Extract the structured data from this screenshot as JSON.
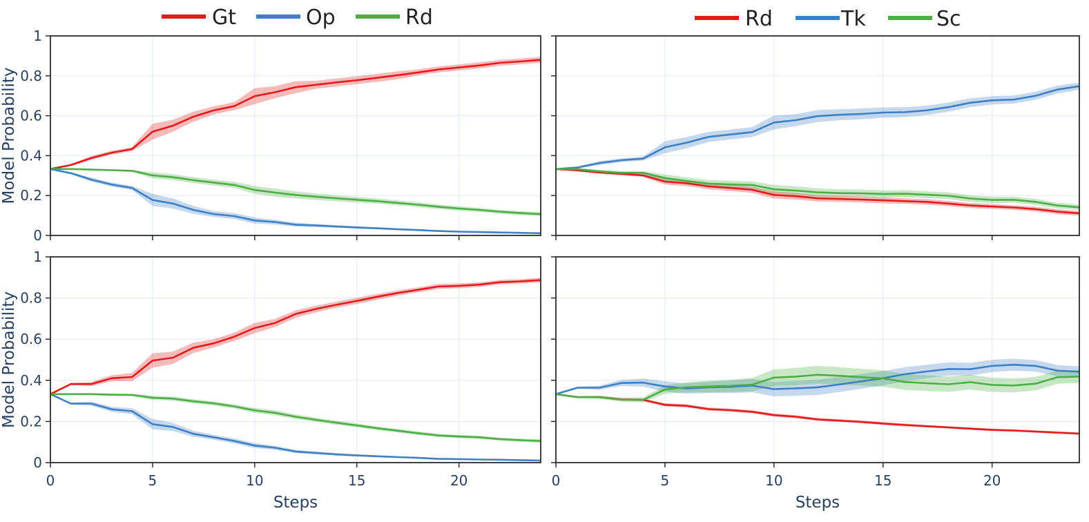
{
  "colors": {
    "red": "#e41a1c",
    "blue": "#3f7fc4",
    "green": "#4cae45",
    "text": "#2a3f5f",
    "grid": "#e6ebf3"
  },
  "legends": [
    {
      "panel_column": "left",
      "entries": [
        {
          "label": "Gt",
          "color": "#e41a1c"
        },
        {
          "label": "Op",
          "color": "#3f7fc4"
        },
        {
          "label": "Rd",
          "color": "#4cae45"
        }
      ]
    },
    {
      "panel_column": "right",
      "entries": [
        {
          "label": "Rd",
          "color": "#e41a1c"
        },
        {
          "label": "Tk",
          "color": "#3f7fc4"
        },
        {
          "label": "Sc",
          "color": "#4cae45"
        }
      ]
    }
  ],
  "chart_data": [
    {
      "type": "line",
      "panel": "top-left",
      "xlabel": "",
      "ylabel": "Model Probability",
      "xlim": [
        0,
        24
      ],
      "ylim": [
        0,
        1
      ],
      "x": [
        0,
        1,
        2,
        3,
        4,
        5,
        6,
        7,
        8,
        9,
        10,
        11,
        12,
        13,
        14,
        15,
        16,
        17,
        18,
        19,
        20,
        21,
        22,
        23,
        24
      ],
      "yticks": [
        "0",
        "0.2",
        "0.4",
        "0.6",
        "0.8",
        "1"
      ],
      "xticks": [],
      "show_y_ticklabels": true,
      "show_x_ticklabels": false,
      "series": [
        {
          "name": "Gt",
          "color": "#e41a1c",
          "values": [
            0.333,
            0.353,
            0.388,
            0.415,
            0.433,
            0.52,
            0.55,
            0.595,
            0.627,
            0.648,
            0.698,
            0.718,
            0.743,
            0.755,
            0.767,
            0.778,
            0.79,
            0.803,
            0.817,
            0.832,
            0.842,
            0.852,
            0.865,
            0.872,
            0.88
          ],
          "band": [
            0.0,
            0.005,
            0.01,
            0.01,
            0.01,
            0.04,
            0.03,
            0.025,
            0.02,
            0.02,
            0.04,
            0.03,
            0.03,
            0.02,
            0.02,
            0.02,
            0.02,
            0.02,
            0.015,
            0.015,
            0.015,
            0.015,
            0.015,
            0.015,
            0.015
          ]
        },
        {
          "name": "Op",
          "color": "#3f7fc4",
          "values": [
            0.333,
            0.312,
            0.28,
            0.255,
            0.238,
            0.178,
            0.16,
            0.128,
            0.107,
            0.097,
            0.075,
            0.067,
            0.054,
            0.05,
            0.045,
            0.04,
            0.036,
            0.031,
            0.027,
            0.022,
            0.019,
            0.017,
            0.015,
            0.013,
            0.011
          ],
          "band": [
            0.0,
            0.005,
            0.01,
            0.01,
            0.01,
            0.03,
            0.025,
            0.02,
            0.015,
            0.015,
            0.015,
            0.012,
            0.01,
            0.008,
            0.007,
            0.006,
            0.005,
            0.005,
            0.004,
            0.004,
            0.003,
            0.003,
            0.003,
            0.003,
            0.003
          ]
        },
        {
          "name": "Rd",
          "color": "#4cae45",
          "values": [
            0.333,
            0.333,
            0.33,
            0.327,
            0.324,
            0.301,
            0.292,
            0.277,
            0.265,
            0.253,
            0.228,
            0.215,
            0.203,
            0.194,
            0.186,
            0.179,
            0.172,
            0.163,
            0.154,
            0.144,
            0.135,
            0.128,
            0.119,
            0.112,
            0.107
          ],
          "band": [
            0.0,
            0.003,
            0.005,
            0.005,
            0.005,
            0.015,
            0.015,
            0.015,
            0.015,
            0.015,
            0.02,
            0.02,
            0.018,
            0.016,
            0.015,
            0.014,
            0.013,
            0.012,
            0.012,
            0.011,
            0.011,
            0.01,
            0.01,
            0.01,
            0.01
          ]
        }
      ]
    },
    {
      "type": "line",
      "panel": "top-right",
      "xlabel": "",
      "ylabel": "",
      "xlim": [
        0,
        24
      ],
      "ylim": [
        0,
        1
      ],
      "x": [
        0,
        1,
        2,
        3,
        4,
        5,
        6,
        7,
        8,
        9,
        10,
        11,
        12,
        13,
        14,
        15,
        16,
        17,
        18,
        19,
        20,
        21,
        22,
        23,
        24
      ],
      "yticks": [],
      "xticks": [],
      "show_y_ticklabels": false,
      "show_x_ticklabels": false,
      "series": [
        {
          "name": "Rd",
          "color": "#e41a1c",
          "values": [
            0.333,
            0.326,
            0.316,
            0.309,
            0.301,
            0.27,
            0.262,
            0.246,
            0.238,
            0.229,
            0.203,
            0.197,
            0.186,
            0.183,
            0.18,
            0.176,
            0.172,
            0.168,
            0.16,
            0.15,
            0.145,
            0.14,
            0.132,
            0.119,
            0.111
          ],
          "band": [
            0.0,
            0.005,
            0.008,
            0.008,
            0.008,
            0.015,
            0.015,
            0.015,
            0.015,
            0.015,
            0.018,
            0.017,
            0.016,
            0.015,
            0.015,
            0.015,
            0.014,
            0.014,
            0.013,
            0.013,
            0.012,
            0.012,
            0.012,
            0.012,
            0.012
          ]
        },
        {
          "name": "Tk",
          "color": "#3f7fc4",
          "values": [
            0.333,
            0.341,
            0.363,
            0.377,
            0.385,
            0.442,
            0.465,
            0.494,
            0.506,
            0.518,
            0.566,
            0.578,
            0.598,
            0.605,
            0.609,
            0.616,
            0.618,
            0.627,
            0.643,
            0.665,
            0.677,
            0.681,
            0.7,
            0.731,
            0.748
          ],
          "band": [
            0.0,
            0.005,
            0.01,
            0.01,
            0.01,
            0.03,
            0.028,
            0.025,
            0.025,
            0.025,
            0.035,
            0.03,
            0.03,
            0.028,
            0.027,
            0.026,
            0.025,
            0.024,
            0.023,
            0.022,
            0.021,
            0.02,
            0.02,
            0.02,
            0.018
          ]
        },
        {
          "name": "Sc",
          "color": "#4cae45",
          "values": [
            0.333,
            0.332,
            0.321,
            0.314,
            0.314,
            0.288,
            0.273,
            0.26,
            0.256,
            0.253,
            0.231,
            0.225,
            0.216,
            0.212,
            0.211,
            0.208,
            0.209,
            0.204,
            0.199,
            0.185,
            0.178,
            0.179,
            0.168,
            0.15,
            0.141
          ],
          "band": [
            0.0,
            0.005,
            0.008,
            0.008,
            0.008,
            0.018,
            0.018,
            0.018,
            0.018,
            0.018,
            0.022,
            0.021,
            0.02,
            0.019,
            0.019,
            0.018,
            0.018,
            0.017,
            0.017,
            0.016,
            0.016,
            0.015,
            0.015,
            0.014,
            0.014
          ]
        }
      ]
    },
    {
      "type": "line",
      "panel": "bottom-left",
      "xlabel": "Steps",
      "ylabel": "Model Probability",
      "xlim": [
        0,
        24
      ],
      "ylim": [
        0,
        1
      ],
      "x": [
        0,
        1,
        2,
        3,
        4,
        5,
        6,
        7,
        8,
        9,
        10,
        11,
        12,
        13,
        14,
        15,
        16,
        17,
        18,
        19,
        20,
        21,
        22,
        23,
        24
      ],
      "yticks": [
        "0",
        "0.2",
        "0.4",
        "0.6",
        "0.8",
        "1"
      ],
      "xticks": [
        "0",
        "5",
        "10",
        "15",
        "20"
      ],
      "show_y_ticklabels": true,
      "show_x_ticklabels": true,
      "series": [
        {
          "name": "Gt",
          "color": "#e41a1c",
          "values": [
            0.333,
            0.382,
            0.382,
            0.41,
            0.416,
            0.496,
            0.51,
            0.558,
            0.58,
            0.612,
            0.654,
            0.679,
            0.722,
            0.747,
            0.767,
            0.786,
            0.806,
            0.824,
            0.84,
            0.856,
            0.859,
            0.865,
            0.877,
            0.881,
            0.887
          ],
          "band": [
            0.0,
            0.005,
            0.01,
            0.015,
            0.02,
            0.035,
            0.03,
            0.025,
            0.02,
            0.02,
            0.025,
            0.02,
            0.018,
            0.016,
            0.015,
            0.015,
            0.014,
            0.013,
            0.012,
            0.012,
            0.012,
            0.011,
            0.011,
            0.011,
            0.011
          ]
        },
        {
          "name": "Op",
          "color": "#3f7fc4",
          "values": [
            0.333,
            0.287,
            0.287,
            0.259,
            0.25,
            0.187,
            0.173,
            0.14,
            0.123,
            0.105,
            0.083,
            0.072,
            0.054,
            0.047,
            0.04,
            0.035,
            0.031,
            0.027,
            0.023,
            0.018,
            0.017,
            0.015,
            0.014,
            0.012,
            0.01
          ],
          "band": [
            0.0,
            0.005,
            0.01,
            0.012,
            0.015,
            0.025,
            0.02,
            0.015,
            0.012,
            0.012,
            0.012,
            0.01,
            0.008,
            0.007,
            0.006,
            0.005,
            0.005,
            0.004,
            0.004,
            0.003,
            0.003,
            0.003,
            0.003,
            0.003,
            0.003
          ]
        },
        {
          "name": "Rd",
          "color": "#4cae45",
          "values": [
            0.333,
            0.333,
            0.333,
            0.33,
            0.329,
            0.315,
            0.311,
            0.298,
            0.288,
            0.273,
            0.254,
            0.242,
            0.223,
            0.208,
            0.194,
            0.181,
            0.167,
            0.155,
            0.143,
            0.132,
            0.127,
            0.123,
            0.114,
            0.109,
            0.105
          ],
          "band": [
            0.0,
            0.003,
            0.005,
            0.006,
            0.006,
            0.01,
            0.01,
            0.01,
            0.01,
            0.01,
            0.012,
            0.012,
            0.011,
            0.01,
            0.01,
            0.01,
            0.009,
            0.009,
            0.009,
            0.008,
            0.008,
            0.008,
            0.008,
            0.008,
            0.008
          ]
        }
      ]
    },
    {
      "type": "line",
      "panel": "bottom-right",
      "xlabel": "Steps",
      "ylabel": "",
      "xlim": [
        0,
        24
      ],
      "ylim": [
        0,
        1
      ],
      "x": [
        0,
        1,
        2,
        3,
        4,
        5,
        6,
        7,
        8,
        9,
        10,
        11,
        12,
        13,
        14,
        15,
        16,
        17,
        18,
        19,
        20,
        21,
        22,
        23,
        24
      ],
      "yticks": [],
      "xticks": [
        "0",
        "5",
        "10",
        "15",
        "20"
      ],
      "show_y_ticklabels": false,
      "show_x_ticklabels": true,
      "series": [
        {
          "name": "Rd",
          "color": "#e41a1c",
          "values": [
            0.333,
            0.318,
            0.318,
            0.307,
            0.305,
            0.281,
            0.276,
            0.26,
            0.255,
            0.247,
            0.231,
            0.223,
            0.21,
            0.204,
            0.198,
            0.19,
            0.183,
            0.177,
            0.171,
            0.165,
            0.159,
            0.156,
            0.151,
            0.146,
            0.141
          ],
          "band": [
            0.0,
            0.004,
            0.005,
            0.006,
            0.006,
            0.008,
            0.008,
            0.008,
            0.008,
            0.008,
            0.008,
            0.008,
            0.007,
            0.007,
            0.007,
            0.007,
            0.007,
            0.006,
            0.006,
            0.006,
            0.006,
            0.006,
            0.006,
            0.006,
            0.006
          ]
        },
        {
          "name": "Tk",
          "color": "#3f7fc4",
          "values": [
            0.333,
            0.364,
            0.364,
            0.387,
            0.389,
            0.37,
            0.36,
            0.366,
            0.368,
            0.374,
            0.357,
            0.361,
            0.366,
            0.38,
            0.395,
            0.41,
            0.43,
            0.443,
            0.455,
            0.454,
            0.47,
            0.476,
            0.47,
            0.447,
            0.442
          ],
          "band": [
            0.0,
            0.006,
            0.01,
            0.015,
            0.02,
            0.025,
            0.025,
            0.028,
            0.03,
            0.032,
            0.035,
            0.036,
            0.037,
            0.037,
            0.036,
            0.035,
            0.034,
            0.033,
            0.032,
            0.031,
            0.03,
            0.029,
            0.028,
            0.027,
            0.026
          ]
        },
        {
          "name": "Sc",
          "color": "#4cae45",
          "values": [
            0.333,
            0.318,
            0.318,
            0.306,
            0.305,
            0.355,
            0.366,
            0.37,
            0.373,
            0.379,
            0.413,
            0.418,
            0.427,
            0.422,
            0.415,
            0.409,
            0.392,
            0.386,
            0.381,
            0.391,
            0.378,
            0.375,
            0.384,
            0.415,
            0.418
          ],
          "band": [
            0.0,
            0.005,
            0.008,
            0.01,
            0.012,
            0.02,
            0.025,
            0.028,
            0.03,
            0.033,
            0.04,
            0.042,
            0.043,
            0.042,
            0.041,
            0.04,
            0.039,
            0.038,
            0.037,
            0.036,
            0.035,
            0.034,
            0.033,
            0.032,
            0.031
          ]
        }
      ]
    }
  ]
}
